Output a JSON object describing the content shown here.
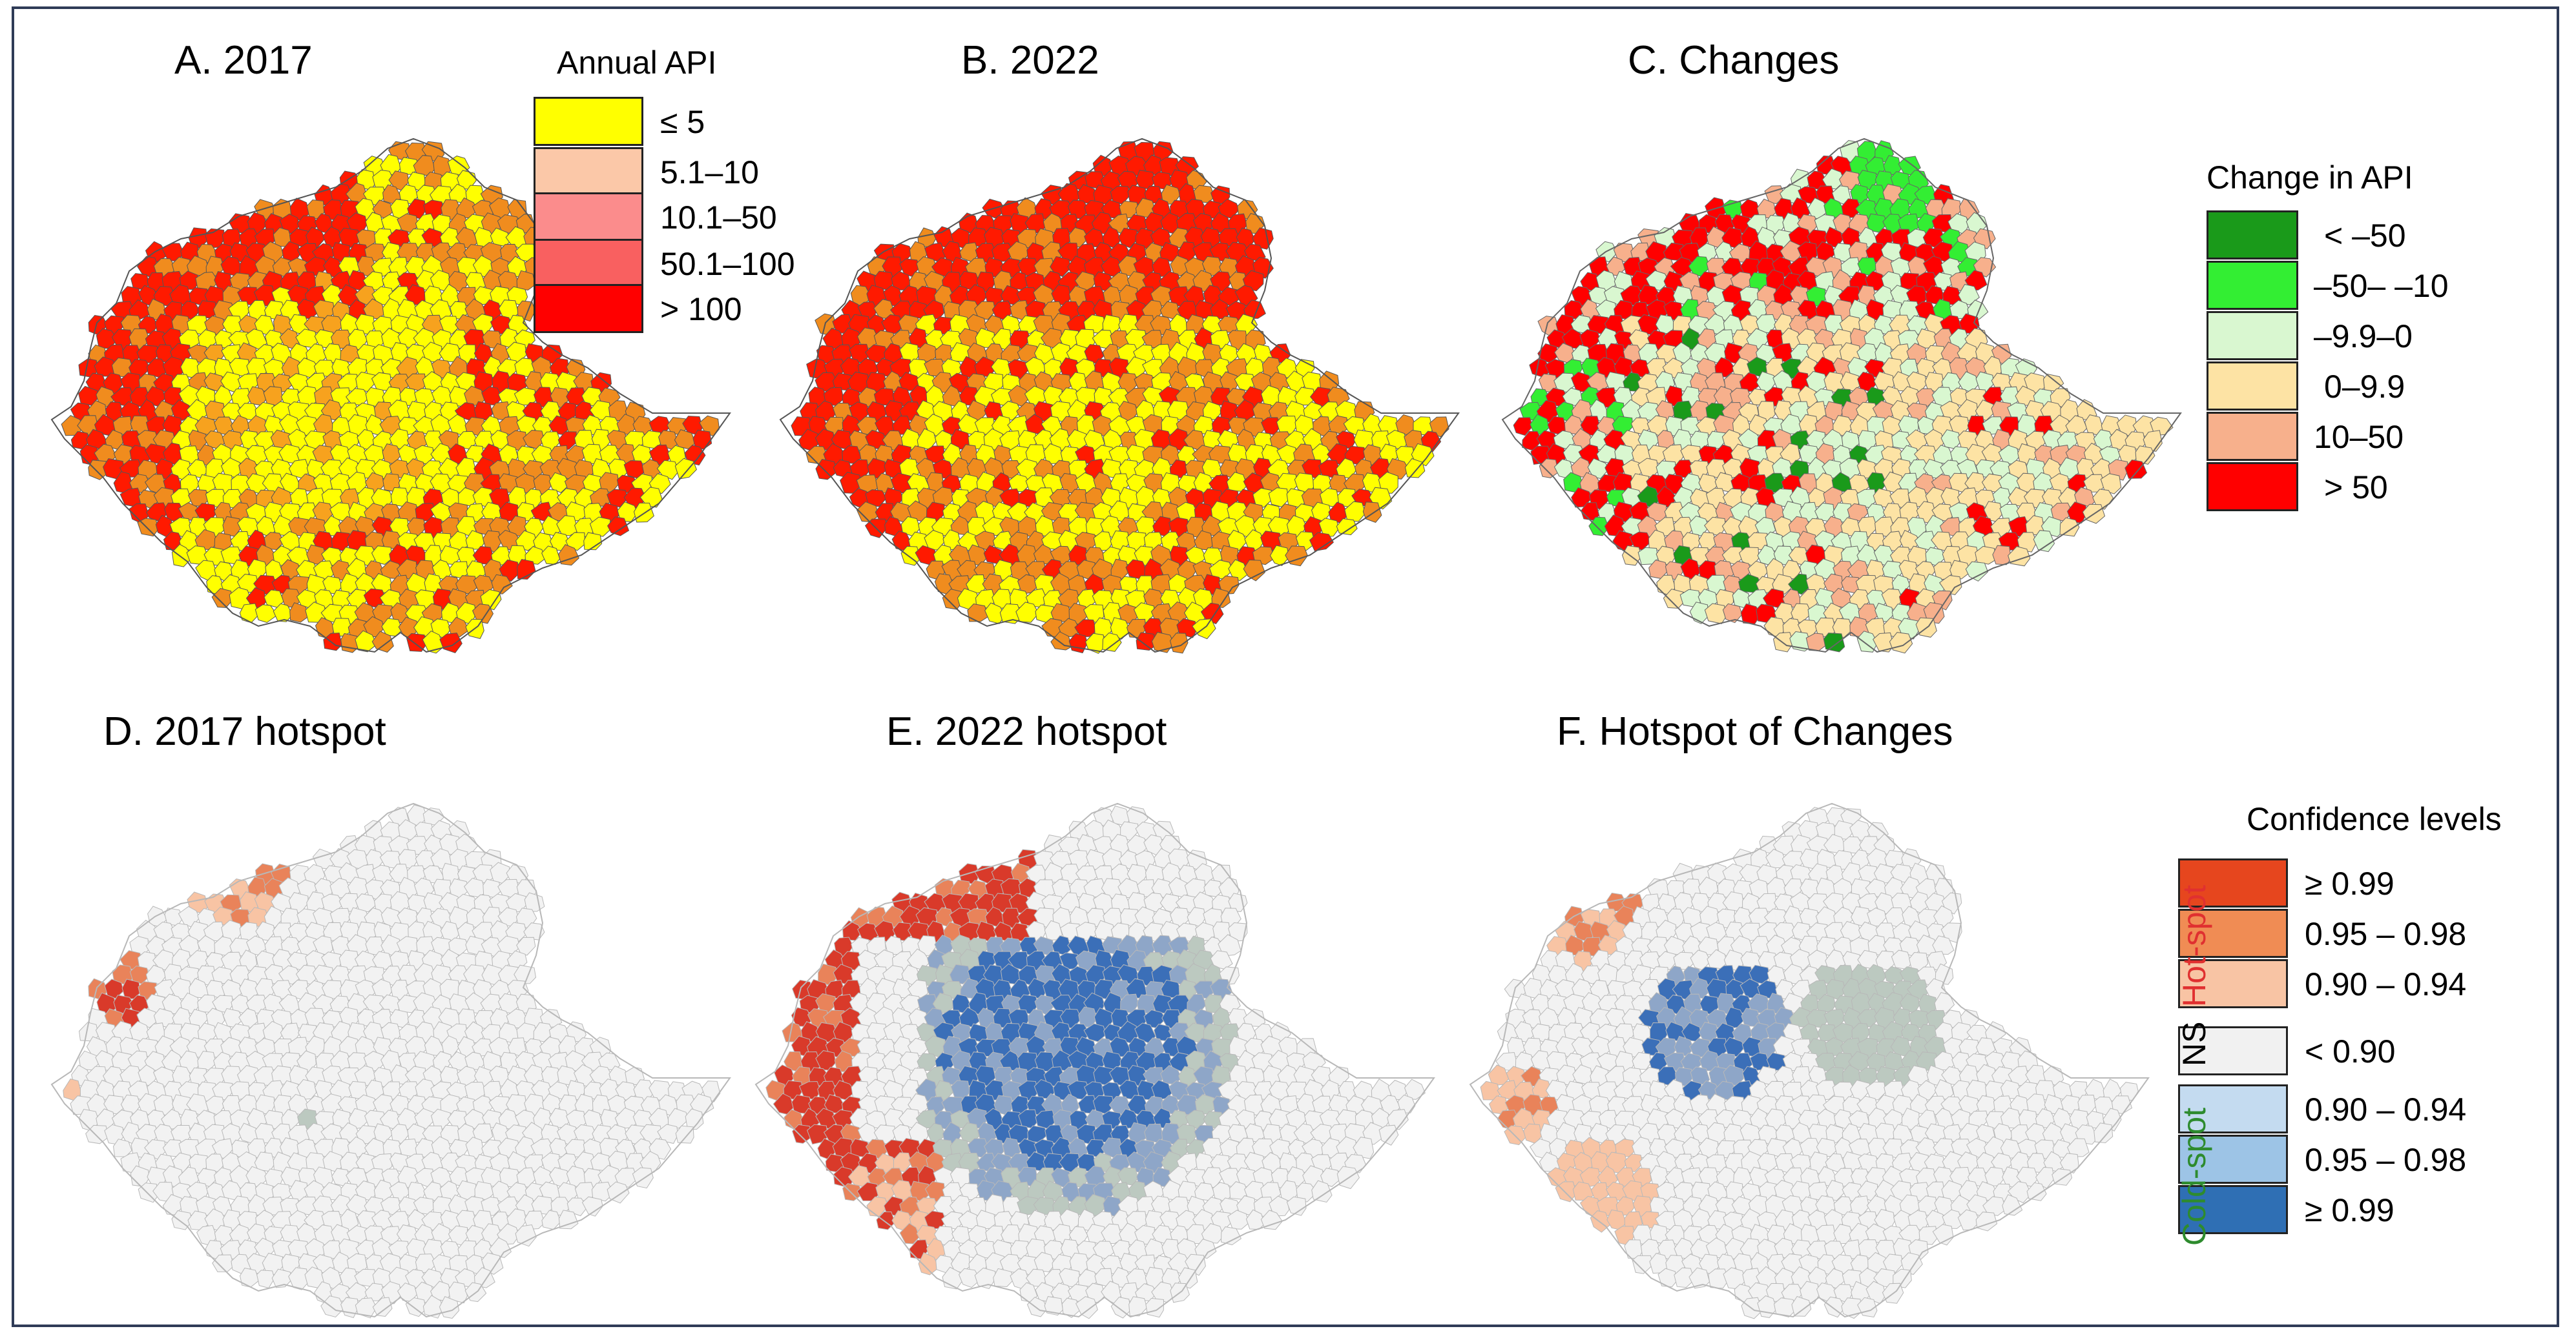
{
  "panels": [
    {
      "id": "A",
      "title": "A. 2017",
      "kind": "api"
    },
    {
      "id": "B",
      "title": "B. 2022",
      "kind": "api"
    },
    {
      "id": "C",
      "title": "C. Changes",
      "kind": "change"
    },
    {
      "id": "D",
      "title": "D. 2017 hotspot",
      "kind": "hot2017"
    },
    {
      "id": "E",
      "title": "E. 2022 hotspot",
      "kind": "hot2022"
    },
    {
      "id": "F",
      "title": "F. Hotspot of Changes",
      "kind": "hotchange"
    }
  ],
  "legend_api": {
    "title": "Annual API",
    "items": [
      {
        "label": "≤ 5",
        "color": "#ffff00"
      },
      {
        "label": "5.1–10",
        "color": "#fbc8a8"
      },
      {
        "label": "10.1–50",
        "color": "#fb8c8c"
      },
      {
        "label": "50.1–100",
        "color": "#f96060"
      },
      {
        "label": "> 100",
        "color": "#ff0000"
      }
    ]
  },
  "legend_change": {
    "title": "Change in API",
    "items": [
      {
        "label": "< –50",
        "color": "#1a9a1a"
      },
      {
        "label": "–50– –10",
        "color": "#33ee33"
      },
      {
        "label": "–9.9–0",
        "color": "#d9f7d0"
      },
      {
        "label": "0–9.9",
        "color": "#fde3a4"
      },
      {
        "label": "10–50",
        "color": "#f7b08c"
      },
      {
        "label": "> 50",
        "color": "#ff0000"
      }
    ]
  },
  "legend_confidence": {
    "title": "Confidence levels",
    "hot_label": "Hot-spot",
    "ns_label": "NS",
    "cold_label": "Cold-spot",
    "hot_color": "#e03030",
    "ns_color": "#000000",
    "cold_color": "#2e8b2e",
    "items": [
      {
        "label": "≥ 0.99",
        "color": "#e6461e"
      },
      {
        "label": "0.95 – 0.98",
        "color": "#f08c54"
      },
      {
        "label": "0.90 – 0.94",
        "color": "#f8c4a4"
      },
      {
        "label": "< 0.90",
        "color": "#f1f1f1"
      },
      {
        "label": "0.90 – 0.94",
        "color": "#c4dbf0"
      },
      {
        "label": "0.95 – 0.98",
        "color": "#9dc4e6"
      },
      {
        "label": "≥ 0.99",
        "color": "#2f6fb4"
      }
    ]
  },
  "colors": {
    "api_low": "#ffff00",
    "api_mid": "#f7a21e",
    "api_orange": "#f08c1e",
    "api_high": "#ff1a00",
    "change_lightgreen": "#d9f7d0",
    "change_cream": "#fde3a4",
    "change_salmon": "#f7b08c",
    "change_red": "#ff0000",
    "change_green": "#33ee33",
    "change_darkgreen": "#1a9a1a",
    "hot_dark": "#d93a2a",
    "hot_mid": "#e9835a",
    "hot_light": "#f8c4a4",
    "cold_dark": "#3b6fb8",
    "cold_mid": "#8ea6c8",
    "cold_grey": "#bcc9c0",
    "ns": "#f2f2f2",
    "border_grey": "#b8b8b8"
  }
}
